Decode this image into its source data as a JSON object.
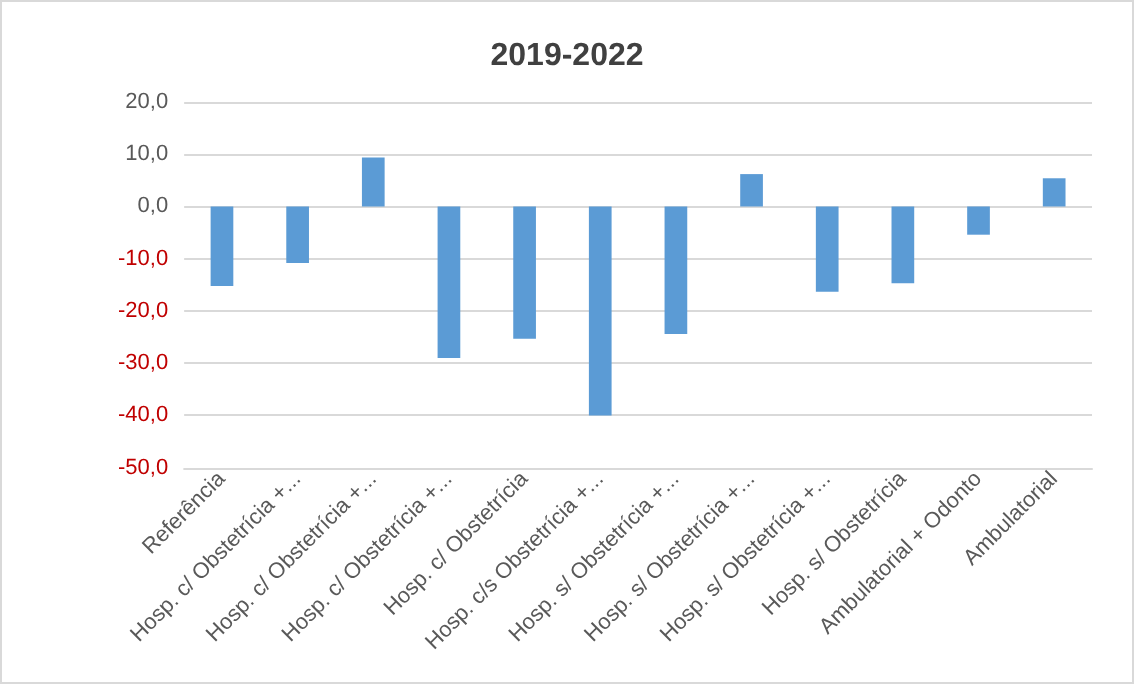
{
  "chart_data": {
    "type": "bar",
    "title": "2019-2022",
    "categories": [
      "Referência",
      "Hosp. c/ Obstetrícia +...",
      "Hosp. c/ Obstetrícia +...",
      "Hosp. c/ Obstetrícia +...",
      "Hosp. c/ Obstetrícia",
      "Hosp. c/s Obstetrícia +...",
      "Hosp. s/ Obstetrícia +...",
      "Hosp. s/ Obstetrícia +...",
      "Hosp. s/ Obstetrícia +...",
      "Hosp. s/ Obstetrícia",
      "Ambulatorial + Odonto",
      "Ambulatorial"
    ],
    "values": [
      -15.2,
      -10.8,
      9.4,
      -29.0,
      -25.3,
      -40.0,
      -24.4,
      6.2,
      -16.3,
      -14.7,
      -5.4,
      5.4
    ],
    "color": "#5b9bd5",
    "ylim": [
      -50,
      20
    ],
    "yticks": [
      {
        "value": -50,
        "label": "-50,0"
      },
      {
        "value": -40,
        "label": "-40,0"
      },
      {
        "value": -30,
        "label": "-30,0"
      },
      {
        "value": -20,
        "label": "-20,0"
      },
      {
        "value": -10,
        "label": "-10,0"
      },
      {
        "value": 0,
        "label": "0,0"
      },
      {
        "value": 10,
        "label": "10,0"
      },
      {
        "value": 20,
        "label": "20,0"
      }
    ],
    "grid": "y"
  }
}
